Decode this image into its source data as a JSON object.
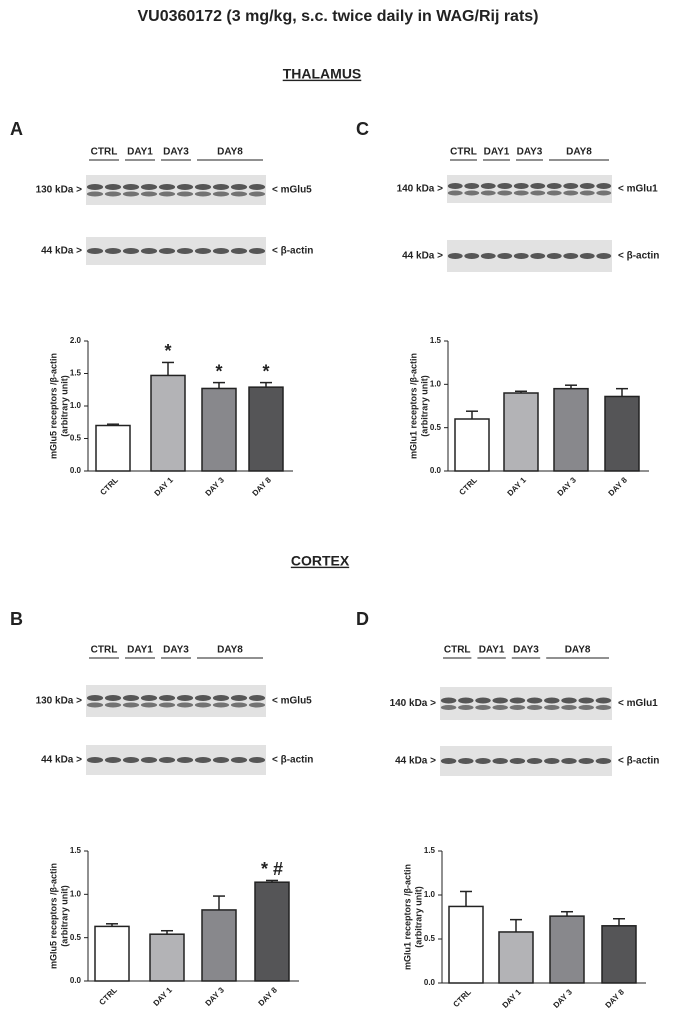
{
  "figure": {
    "title": "VU0360172 (3 mg/kg, s.c. twice daily in WAG/Rij rats)",
    "sections": [
      "THALAMUS",
      "CORTEX"
    ]
  },
  "panels": [
    {
      "letter": "A",
      "lanes": [
        "CTRL",
        "DAY1",
        "DAY3",
        "DAY8"
      ],
      "bands": [
        {
          "size": "130 kDa >",
          "name": "< mGlu5"
        },
        {
          "size": "44 kDa >",
          "name": "< β-actin"
        }
      ]
    },
    {
      "letter": "C",
      "lanes": [
        "CTRL",
        "DAY1",
        "DAY3",
        "DAY8"
      ],
      "bands": [
        {
          "size": "140 kDa >",
          "name": "< mGlu1"
        },
        {
          "size": "44 kDa >",
          "name": "< β-actin"
        }
      ]
    },
    {
      "letter": "B",
      "lanes": [
        "CTRL",
        "DAY1",
        "DAY3",
        "DAY8"
      ],
      "bands": [
        {
          "size": "130 kDa >",
          "name": "< mGlu5"
        },
        {
          "size": "44 kDa >",
          "name": "< β-actin"
        }
      ]
    },
    {
      "letter": "D",
      "lanes": [
        "CTRL",
        "DAY1",
        "DAY3",
        "DAY8"
      ],
      "bands": [
        {
          "size": "140 kDa >",
          "name": "< mGlu1"
        },
        {
          "size": "44 kDa >",
          "name": "< β-actin"
        }
      ]
    }
  ],
  "chart_data": [
    {
      "type": "bar",
      "ylabel": [
        "mGlu5 receptors /β-actin",
        "(arbitrary unit)"
      ],
      "categories": [
        "CTRL",
        "DAY 1",
        "DAY 3",
        "DAY 8"
      ],
      "values": [
        0.7,
        1.47,
        1.27,
        1.29
      ],
      "errors": [
        0.02,
        0.2,
        0.09,
        0.07
      ],
      "value_annotations": [
        null,
        "*",
        "*",
        "*"
      ],
      "colors": [
        "#ffffff",
        "#b3b3b6",
        "#88888c",
        "#555557"
      ],
      "ylim": [
        0,
        2
      ],
      "yticks": [
        {
          "value": 0,
          "label": "0.0"
        },
        {
          "value": 0.5,
          "label": "0.5"
        },
        {
          "value": 1,
          "label": "1.0"
        },
        {
          "value": 1.5,
          "label": "1.5"
        },
        {
          "value": 2,
          "label": "2.0"
        }
      ]
    },
    {
      "type": "bar",
      "ylabel": [
        "mGlu1 receptors /β-actin",
        "(arbitrary unit)"
      ],
      "categories": [
        "CTRL",
        "DAY 1",
        "DAY 3",
        "DAY 8"
      ],
      "values": [
        0.6,
        0.9,
        0.95,
        0.86
      ],
      "errors": [
        0.09,
        0.02,
        0.04,
        0.09
      ],
      "value_annotations": [
        null,
        null,
        null,
        null
      ],
      "colors": [
        "#ffffff",
        "#b3b3b6",
        "#88888c",
        "#555557"
      ],
      "ylim": [
        0,
        1.5
      ],
      "yticks": [
        {
          "value": 0,
          "label": "0.0"
        },
        {
          "value": 0.5,
          "label": "0.5"
        },
        {
          "value": 1,
          "label": "1.0"
        },
        {
          "value": 1.5,
          "label": "1.5"
        }
      ]
    },
    {
      "type": "bar",
      "ylabel": [
        "mGlu5 receptors /β-actin",
        "(arbitrary unit)"
      ],
      "categories": [
        "CTRL",
        "DAY 1",
        "DAY 3",
        "DAY 8"
      ],
      "values": [
        0.63,
        0.54,
        0.82,
        1.14
      ],
      "errors": [
        0.03,
        0.04,
        0.16,
        0.02
      ],
      "value_annotations": [
        null,
        null,
        null,
        "* #"
      ],
      "colors": [
        "#ffffff",
        "#b3b3b6",
        "#88888c",
        "#555557"
      ],
      "ylim": [
        0,
        1.5
      ],
      "yticks": [
        {
          "value": 0,
          "label": "0.0"
        },
        {
          "value": 0.5,
          "label": "0.5"
        },
        {
          "value": 1,
          "label": "1.0"
        },
        {
          "value": 1.5,
          "label": "1.5"
        }
      ]
    },
    {
      "type": "bar",
      "ylabel": [
        "mGlu1 receptors /β-actin",
        "(arbitrary unit)"
      ],
      "categories": [
        "CTRL",
        "DAY 1",
        "DAY 3",
        "DAY 8"
      ],
      "values": [
        0.87,
        0.58,
        0.76,
        0.65
      ],
      "errors": [
        0.17,
        0.14,
        0.05,
        0.08
      ],
      "value_annotations": [
        null,
        null,
        null,
        null
      ],
      "colors": [
        "#ffffff",
        "#b3b3b6",
        "#88888c",
        "#555557"
      ],
      "ylim": [
        0,
        1.5
      ],
      "yticks": [
        {
          "value": 0,
          "label": "0.0"
        },
        {
          "value": 0.5,
          "label": "0.5"
        },
        {
          "value": 1,
          "label": "1.0"
        },
        {
          "value": 1.5,
          "label": "1.5"
        }
      ]
    }
  ]
}
